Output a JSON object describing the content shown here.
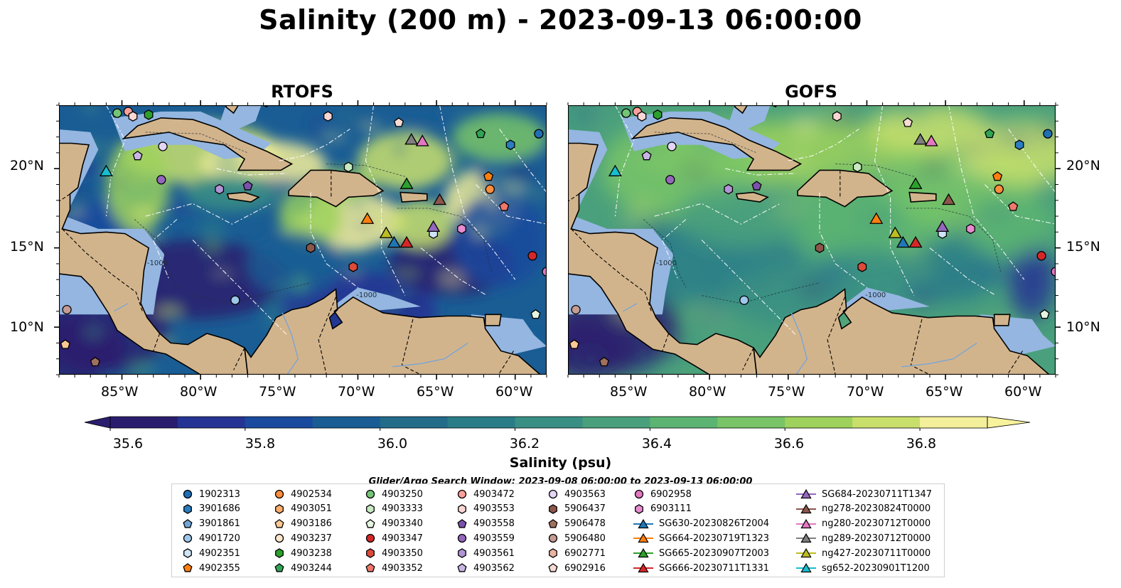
{
  "title": "Salinity (200 m) - 2023-09-13 06:00:00",
  "panels": [
    {
      "title": "RTOFS",
      "model": "rtofs"
    },
    {
      "title": "GOFS",
      "model": "gofs"
    }
  ],
  "map": {
    "lon_range": [
      -89,
      -58
    ],
    "lat_range": [
      7,
      24
    ],
    "lon_ticks": [
      "85°W",
      "80°W",
      "75°W",
      "70°W",
      "65°W",
      "60°W"
    ],
    "lat_ticks": [
      "20°N",
      "15°N",
      "10°N"
    ],
    "contour_labels": [
      "-1000",
      "-1000"
    ],
    "colors": {
      "land": "#d2b48c",
      "shelf": "#94b6e0",
      "coastline": "#000000",
      "eez_lines": "#ffffff"
    }
  },
  "colorbar": {
    "title": "Salinity (psu)",
    "range": [
      35.6,
      36.9
    ],
    "tick_labels": [
      "35.6",
      "35.8",
      "36.0",
      "36.2",
      "36.4",
      "36.6",
      "36.8"
    ],
    "colors": [
      "#2a1d6e",
      "#253494",
      "#1a4a9e",
      "#1a5d94",
      "#226c8a",
      "#2a7d88",
      "#3a8f84",
      "#4aa07c",
      "#5cb472",
      "#78c467",
      "#9ed25c",
      "#c8df6c",
      "#f3ef9a"
    ]
  },
  "search_window": "Glider/Argo Search Window: 2023-09-08 06:00:00 to 2023-09-13 06:00:00",
  "legend": {
    "columns": [
      [
        {
          "label": "1902313",
          "marker": "circle",
          "color": "#1f6fb4"
        },
        {
          "label": "3901686",
          "marker": "hexagon",
          "color": "#2a7dc0"
        },
        {
          "label": "3901861",
          "marker": "pentagon",
          "color": "#6fa6d8"
        },
        {
          "label": "4901720",
          "marker": "circle",
          "color": "#9ec7ea"
        },
        {
          "label": "4902351",
          "marker": "hexagon",
          "color": "#cfe4f7"
        },
        {
          "label": "4902355",
          "marker": "pentagon",
          "color": "#ff7f0e"
        }
      ],
      [
        {
          "label": "4902534",
          "marker": "circle",
          "color": "#fd8d3c"
        },
        {
          "label": "4903051",
          "marker": "hexagon",
          "color": "#fdae6b"
        },
        {
          "label": "4903186",
          "marker": "pentagon",
          "color": "#fdc894"
        },
        {
          "label": "4903237",
          "marker": "circle",
          "color": "#fee6ce"
        },
        {
          "label": "4903238",
          "marker": "hexagon",
          "color": "#2ca02c"
        },
        {
          "label": "4903244",
          "marker": "pentagon",
          "color": "#31a354"
        }
      ],
      [
        {
          "label": "4903250",
          "marker": "circle",
          "color": "#74c476"
        },
        {
          "label": "4903333",
          "marker": "hexagon",
          "color": "#c7e9c0"
        },
        {
          "label": "4903340",
          "marker": "pentagon",
          "color": "#e5f5e0"
        },
        {
          "label": "4903347",
          "marker": "circle",
          "color": "#d62728"
        },
        {
          "label": "4903350",
          "marker": "hexagon",
          "color": "#de4a3a"
        },
        {
          "label": "4903352",
          "marker": "pentagon",
          "color": "#f0776a"
        }
      ],
      [
        {
          "label": "4903472",
          "marker": "circle",
          "color": "#fc9f9a"
        },
        {
          "label": "4903553",
          "marker": "hexagon",
          "color": "#fcd6d3"
        },
        {
          "label": "4903558",
          "marker": "pentagon",
          "color": "#7b52ab"
        },
        {
          "label": "4903559",
          "marker": "circle",
          "color": "#9467bd"
        },
        {
          "label": "4903561",
          "marker": "hexagon",
          "color": "#b294d6"
        },
        {
          "label": "4903562",
          "marker": "pentagon",
          "color": "#c9b4e6"
        }
      ],
      [
        {
          "label": "4903563",
          "marker": "circle",
          "color": "#e3d6f5"
        },
        {
          "label": "5906437",
          "marker": "hexagon",
          "color": "#8c564b"
        },
        {
          "label": "5906478",
          "marker": "pentagon",
          "color": "#a0705f"
        },
        {
          "label": "5906480",
          "marker": "circle",
          "color": "#c49c94"
        },
        {
          "label": "6902771",
          "marker": "hexagon",
          "color": "#e8b4a4"
        },
        {
          "label": "6902916",
          "marker": "pentagon",
          "color": "#f7dcd3"
        }
      ],
      [
        {
          "label": "6902958",
          "marker": "circle",
          "color": "#e377c2"
        },
        {
          "label": "6903111",
          "marker": "hexagon",
          "color": "#e88bd0"
        },
        {
          "label": "SG630-20230826T2004",
          "marker": "triangle-line",
          "color": "#1f77b4"
        },
        {
          "label": "SG664-20230719T1323",
          "marker": "triangle-line",
          "color": "#ff7f0e"
        },
        {
          "label": "SG665-20230907T2003",
          "marker": "triangle-line",
          "color": "#2ca02c"
        },
        {
          "label": "SG666-20230711T1331",
          "marker": "triangle-line",
          "color": "#d62728"
        }
      ],
      [
        {
          "label": "SG684-20230711T1347",
          "marker": "triangle-line",
          "color": "#9467bd"
        },
        {
          "label": "ng278-20230824T0000",
          "marker": "triangle-line",
          "color": "#8c564b"
        },
        {
          "label": "ng280-20230712T0000",
          "marker": "triangle-line",
          "color": "#e377c2"
        },
        {
          "label": "ng289-20230712T0000",
          "marker": "triangle-line",
          "color": "#7f7f7f"
        },
        {
          "label": "ng427-20230711T0000",
          "marker": "triangle-line",
          "color": "#bcbd22"
        },
        {
          "label": "sg652-20230901T1200",
          "marker": "triangle-line",
          "color": "#17becf"
        }
      ]
    ]
  },
  "markers": [
    {
      "id": "1902313",
      "lon": -58.5,
      "lat": 22.2,
      "marker": "circle",
      "color": "#1f6fb4"
    },
    {
      "id": "3901686",
      "lon": -60.3,
      "lat": 21.5,
      "marker": "hexagon",
      "color": "#2a7dc0"
    },
    {
      "id": "4901720",
      "lon": -77.8,
      "lat": 11.7,
      "marker": "circle",
      "color": "#9ec7ea"
    },
    {
      "id": "4902351",
      "lon": -65.2,
      "lat": 15.9,
      "marker": "hexagon",
      "color": "#cfe4f7"
    },
    {
      "id": "4902534",
      "lon": -61.6,
      "lat": 18.7,
      "marker": "circle",
      "color": "#fd8d3c"
    },
    {
      "id": "4902355",
      "lon": -61.7,
      "lat": 19.5,
      "marker": "pentagon",
      "color": "#ff7f0e"
    },
    {
      "id": "4903238",
      "lon": -83.3,
      "lat": 23.4,
      "marker": "hexagon",
      "color": "#2ca02c"
    },
    {
      "id": "4903244",
      "lon": -62.2,
      "lat": 22.2,
      "marker": "pentagon",
      "color": "#31a354"
    },
    {
      "id": "4903250",
      "lon": -85.3,
      "lat": 23.5,
      "marker": "circle",
      "color": "#74c476"
    },
    {
      "id": "4903333",
      "lon": -70.6,
      "lat": 20.1,
      "marker": "hexagon",
      "color": "#c7e9c0"
    },
    {
      "id": "4903340",
      "lon": -58.7,
      "lat": 10.8,
      "marker": "pentagon",
      "color": "#e5f5e0"
    },
    {
      "id": "4903347",
      "lon": -58.9,
      "lat": 14.5,
      "marker": "circle",
      "color": "#d62728"
    },
    {
      "id": "4903350",
      "lon": -70.3,
      "lat": 13.8,
      "marker": "hexagon",
      "color": "#de4a3a"
    },
    {
      "id": "4903352",
      "lon": -60.7,
      "lat": 17.6,
      "marker": "pentagon",
      "color": "#f0776a"
    },
    {
      "id": "4903472",
      "lon": -84.6,
      "lat": 23.6,
      "marker": "circle",
      "color": "#fc9f9a"
    },
    {
      "id": "4903553",
      "lon": -71.9,
      "lat": 23.3,
      "marker": "hexagon",
      "color": "#fcd6d3"
    },
    {
      "id": "4903553b",
      "lon": -84.3,
      "lat": 23.3,
      "marker": "hexagon",
      "color": "#fcd6d3"
    },
    {
      "id": "4903558",
      "lon": -77.0,
      "lat": 18.9,
      "marker": "pentagon",
      "color": "#7b52ab"
    },
    {
      "id": "4903559",
      "lon": -82.5,
      "lat": 19.3,
      "marker": "circle",
      "color": "#9467bd"
    },
    {
      "id": "4903561",
      "lon": -78.8,
      "lat": 18.7,
      "marker": "hexagon",
      "color": "#b294d6"
    },
    {
      "id": "4903562",
      "lon": -84.0,
      "lat": 20.8,
      "marker": "pentagon",
      "color": "#c9b4e6"
    },
    {
      "id": "4903563",
      "lon": -82.4,
      "lat": 21.4,
      "marker": "circle",
      "color": "#e3d6f5"
    },
    {
      "id": "5906437",
      "lon": -73.0,
      "lat": 15.0,
      "marker": "hexagon",
      "color": "#8c564b"
    },
    {
      "id": "5906478",
      "lon": -86.7,
      "lat": 7.8,
      "marker": "pentagon",
      "color": "#a0705f"
    },
    {
      "id": "5906480",
      "lon": -88.5,
      "lat": 11.1,
      "marker": "circle",
      "color": "#c49c94"
    },
    {
      "id": "6902916",
      "lon": -67.4,
      "lat": 22.9,
      "marker": "pentagon",
      "color": "#f7dcd3"
    },
    {
      "id": "4903186",
      "lon": -88.6,
      "lat": 8.9,
      "marker": "pentagon",
      "color": "#fdc894"
    },
    {
      "id": "6902958",
      "lon": -58.0,
      "lat": 13.5,
      "marker": "circle",
      "color": "#e377c2"
    },
    {
      "id": "6903111",
      "lon": -63.4,
      "lat": 16.2,
      "marker": "hexagon",
      "color": "#e88bd0"
    },
    {
      "id": "SG630",
      "lon": -67.7,
      "lat": 15.3,
      "marker": "triangle",
      "color": "#1f77b4"
    },
    {
      "id": "SG664",
      "lon": -69.4,
      "lat": 16.8,
      "marker": "triangle",
      "color": "#ff7f0e"
    },
    {
      "id": "SG665",
      "lon": -66.9,
      "lat": 19.0,
      "marker": "triangle",
      "color": "#2ca02c"
    },
    {
      "id": "SG666",
      "lon": -66.9,
      "lat": 15.3,
      "marker": "triangle",
      "color": "#d62728"
    },
    {
      "id": "SG684",
      "lon": -65.2,
      "lat": 16.3,
      "marker": "triangle",
      "color": "#9467bd"
    },
    {
      "id": "ng278",
      "lon": -64.8,
      "lat": 18.0,
      "marker": "triangle",
      "color": "#8c564b"
    },
    {
      "id": "ng280",
      "lon": -65.9,
      "lat": 21.7,
      "marker": "triangle",
      "color": "#e377c2"
    },
    {
      "id": "ng289",
      "lon": -66.6,
      "lat": 21.8,
      "marker": "triangle",
      "color": "#7f7f7f"
    },
    {
      "id": "ng427",
      "lon": -68.2,
      "lat": 15.9,
      "marker": "triangle",
      "color": "#bcbd22"
    },
    {
      "id": "sg652",
      "lon": -86.0,
      "lat": 19.8,
      "marker": "triangle",
      "color": "#17becf"
    }
  ]
}
